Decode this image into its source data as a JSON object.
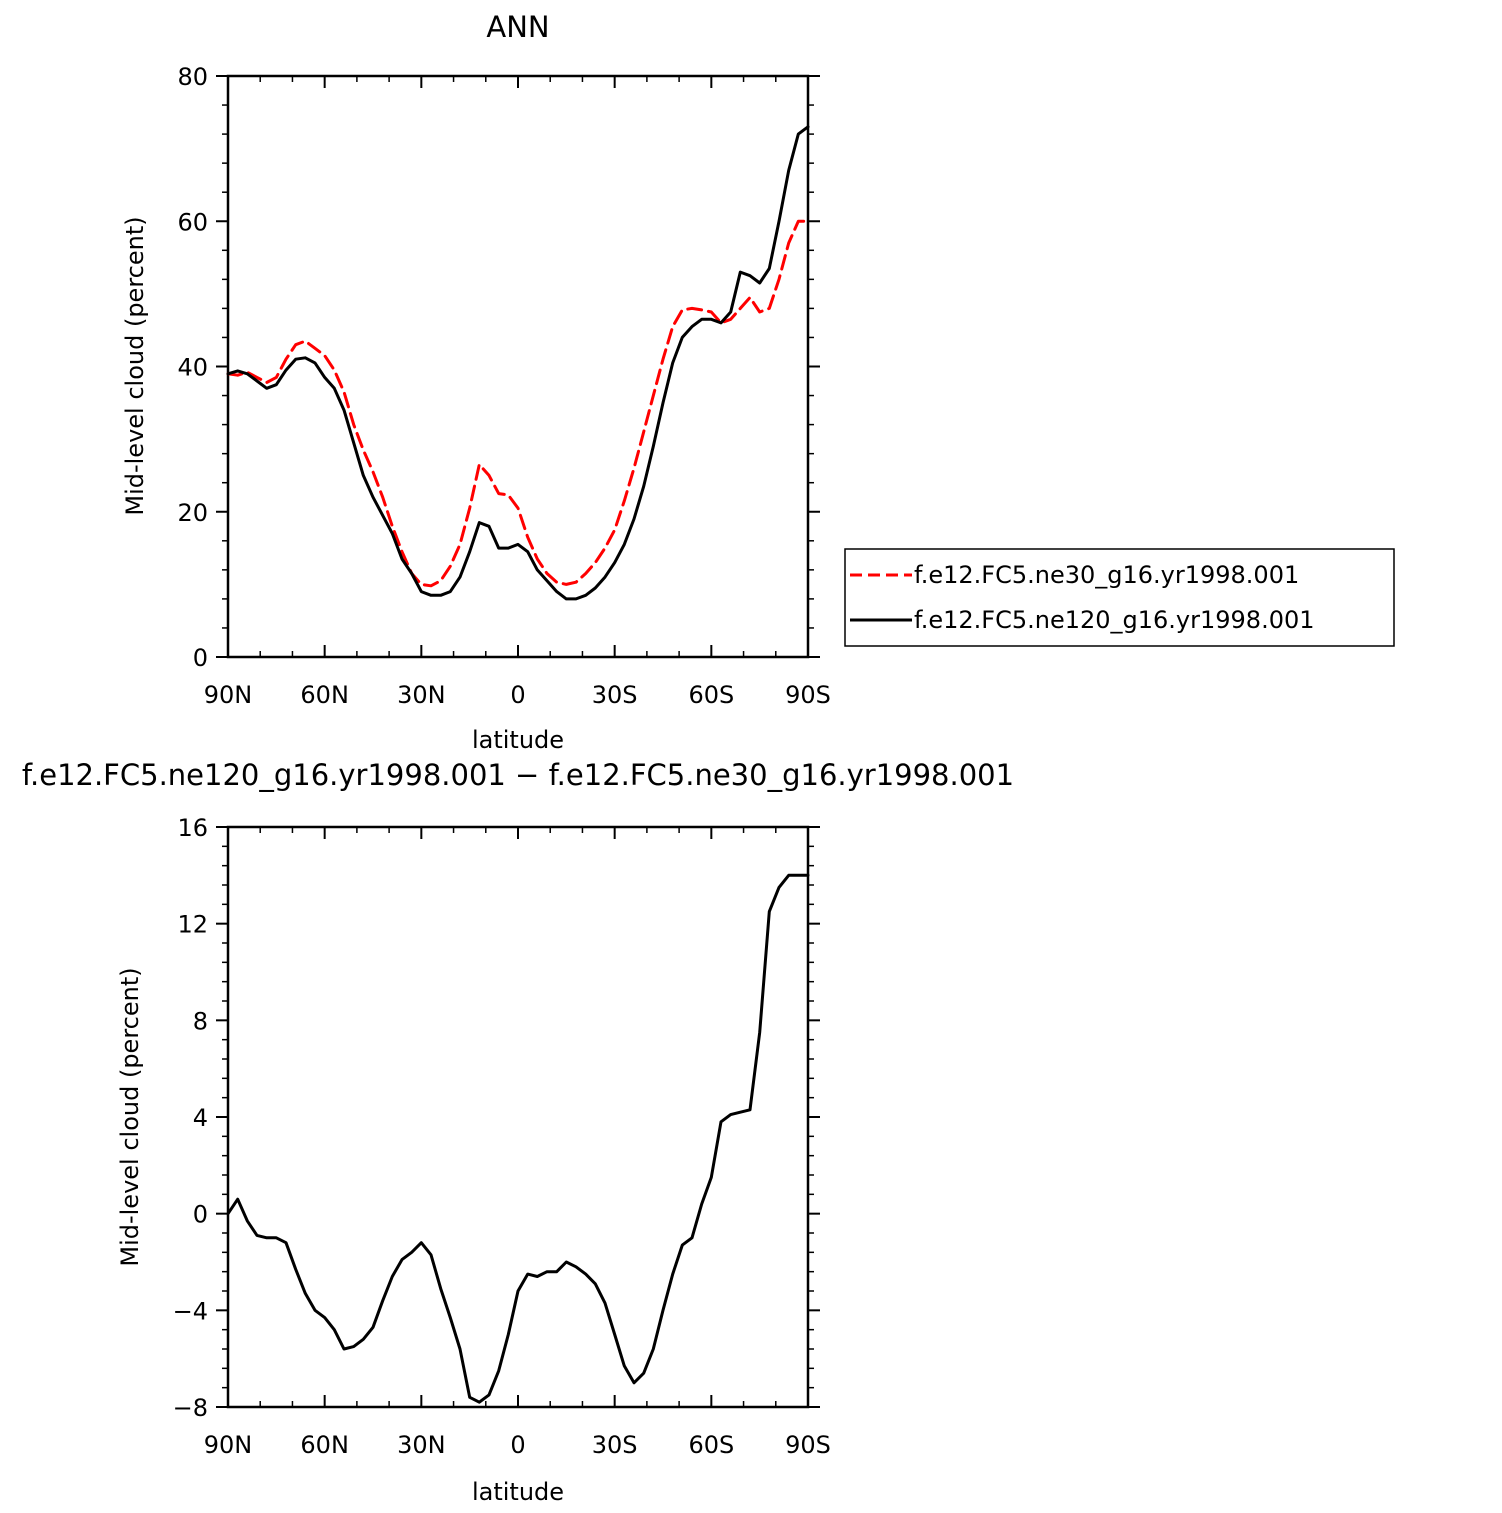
{
  "chart_data": [
    {
      "type": "line",
      "title": "ANN",
      "xlabel": "latitude",
      "ylabel": "Mid-level cloud (percent)",
      "xlim": [
        90,
        -90
      ],
      "ylim": [
        0,
        80
      ],
      "x_tick_values": [
        90,
        60,
        30,
        0,
        -30,
        -60,
        -90
      ],
      "x_tick_labels": [
        "90N",
        "60N",
        "30N",
        "0",
        "30S",
        "60S",
        "90S"
      ],
      "y_ticks": [
        0,
        20,
        40,
        60,
        80
      ],
      "legend_position": "right",
      "series": [
        {
          "name": "f.e12.FC5.ne30_g16.yr1998.001",
          "color": "#ff0000",
          "style": "dashed",
          "x": [
            90,
            87,
            84,
            81,
            78,
            75,
            72,
            69,
            66,
            63,
            60,
            57,
            54,
            51,
            48,
            45,
            42,
            39,
            36,
            33,
            30,
            27,
            24,
            21,
            18,
            15,
            12,
            9,
            6,
            3,
            0,
            -3,
            -6,
            -9,
            -12,
            -15,
            -18,
            -21,
            -24,
            -27,
            -30,
            -33,
            -36,
            -39,
            -42,
            -45,
            -48,
            -51,
            -54,
            -57,
            -60,
            -63,
            -66,
            -69,
            -72,
            -75,
            -78,
            -81,
            -84,
            -87,
            -90
          ],
          "y": [
            39.0,
            38.8,
            39.2,
            38.5,
            37.8,
            38.5,
            41.0,
            43.0,
            43.5,
            42.5,
            41.5,
            39.5,
            36.5,
            32.0,
            28.5,
            25.5,
            22.0,
            18.0,
            14.5,
            11.5,
            10.0,
            9.8,
            10.5,
            12.5,
            15.5,
            20.5,
            26.5,
            25.0,
            22.5,
            22.3,
            20.5,
            16.5,
            13.5,
            11.5,
            10.3,
            10.0,
            10.3,
            11.5,
            13.0,
            15.0,
            17.5,
            21.5,
            26.0,
            31.0,
            36.0,
            41.0,
            45.5,
            47.8,
            48.0,
            47.8,
            47.5,
            46.0,
            46.5,
            48.0,
            49.5,
            47.5,
            48.0,
            52.0,
            57.0,
            60.0,
            60.0
          ]
        },
        {
          "name": "f.e12.FC5.ne120_g16.yr1998.001",
          "color": "#000000",
          "style": "solid",
          "x": [
            90,
            87,
            84,
            81,
            78,
            75,
            72,
            69,
            66,
            63,
            60,
            57,
            54,
            51,
            48,
            45,
            42,
            39,
            36,
            33,
            30,
            27,
            24,
            21,
            18,
            15,
            12,
            9,
            6,
            3,
            0,
            -3,
            -6,
            -9,
            -12,
            -15,
            -18,
            -21,
            -24,
            -27,
            -30,
            -33,
            -36,
            -39,
            -42,
            -45,
            -48,
            -51,
            -54,
            -57,
            -60,
            -63,
            -66,
            -69,
            -72,
            -75,
            -78,
            -81,
            -84,
            -87,
            -90
          ],
          "y": [
            39.0,
            39.4,
            39.0,
            38.0,
            37.0,
            37.5,
            39.5,
            41.0,
            41.2,
            40.5,
            38.5,
            37.0,
            34.0,
            29.5,
            25.0,
            22.0,
            19.5,
            17.0,
            13.5,
            11.5,
            9.0,
            8.5,
            8.5,
            9.0,
            11.0,
            14.5,
            18.5,
            18.0,
            15.0,
            15.0,
            15.5,
            14.5,
            12.0,
            10.5,
            9.0,
            8.0,
            8.0,
            8.5,
            9.5,
            11.0,
            13.0,
            15.5,
            19.0,
            23.5,
            29.0,
            35.0,
            40.5,
            44.0,
            45.5,
            46.5,
            46.5,
            46.0,
            47.5,
            53.0,
            52.5,
            51.5,
            53.5,
            60.0,
            67.0,
            72.0,
            73.0
          ]
        }
      ]
    },
    {
      "type": "line",
      "title": "f.e12.FC5.ne120_g16.yr1998.001 − f.e12.FC5.ne30_g16.yr1998.001",
      "xlabel": "latitude",
      "ylabel": "Mid-level cloud (percent)",
      "xlim": [
        90,
        -90
      ],
      "ylim": [
        -8,
        16
      ],
      "x_tick_values": [
        90,
        60,
        30,
        0,
        -30,
        -60,
        -90
      ],
      "x_tick_labels": [
        "90N",
        "60N",
        "30N",
        "0",
        "30S",
        "60S",
        "90S"
      ],
      "y_ticks": [
        -8,
        -4,
        0,
        4,
        8,
        12,
        16
      ],
      "series": [
        {
          "color": "#000000",
          "style": "solid",
          "x": [
            90,
            87,
            84,
            81,
            78,
            75,
            72,
            69,
            66,
            63,
            60,
            57,
            54,
            51,
            48,
            45,
            42,
            39,
            36,
            33,
            30,
            27,
            24,
            21,
            18,
            15,
            12,
            9,
            6,
            3,
            0,
            -3,
            -6,
            -9,
            -12,
            -15,
            -18,
            -21,
            -24,
            -27,
            -30,
            -33,
            -36,
            -39,
            -42,
            -45,
            -48,
            -51,
            -54,
            -57,
            -60,
            -63,
            -66,
            -69,
            -72,
            -75,
            -78,
            -81,
            -84,
            -87,
            -88.5,
            -90
          ],
          "y": [
            0.0,
            0.6,
            -0.3,
            -0.9,
            -1.0,
            -1.0,
            -1.2,
            -2.3,
            -3.3,
            -4.0,
            -4.3,
            -4.8,
            -5.6,
            -5.5,
            -5.2,
            -4.7,
            -3.6,
            -2.6,
            -1.9,
            -1.6,
            -1.2,
            -1.7,
            -3.1,
            -4.3,
            -5.6,
            -7.6,
            -7.8,
            -7.5,
            -6.5,
            -5.0,
            -3.2,
            -2.5,
            -2.6,
            -2.4,
            -2.4,
            -2.0,
            -2.2,
            -2.5,
            -2.9,
            -3.7,
            -5.0,
            -6.3,
            -7.0,
            -6.6,
            -5.6,
            -4.0,
            -2.5,
            -1.3,
            -1.0,
            0.4,
            1.5,
            3.8,
            4.1,
            4.2,
            4.3,
            7.5,
            12.5,
            13.5,
            14.0,
            14.0,
            14.0,
            14.0
          ]
        }
      ]
    }
  ]
}
